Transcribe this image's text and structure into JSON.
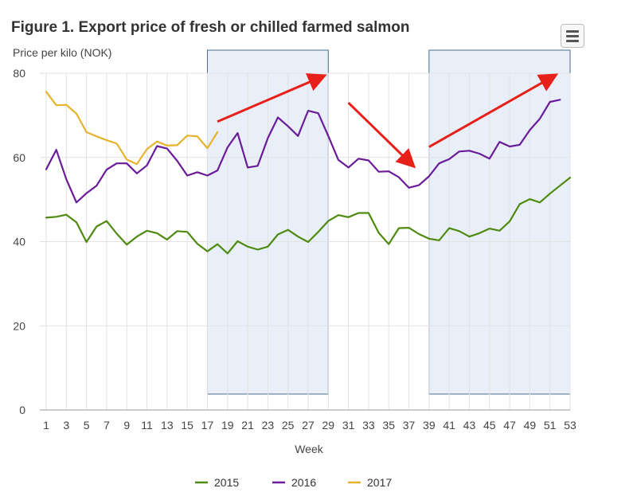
{
  "header": {
    "title": "Figure 1. Export price of fresh or chilled farmed salmon",
    "subtitle": "Price per kilo (NOK)"
  },
  "menu": {
    "icon": "hamburger-menu-icon"
  },
  "colors": {
    "2015": "#4f8a10",
    "2016": "#6a1b9a",
    "2017": "#e6b32e",
    "highlight_fill": "#e8eff9",
    "highlight_border": "#4a6b8a",
    "arrow": "#e8201a",
    "grid": "#e2e2e2"
  },
  "chart_data": {
    "type": "line",
    "title": "Figure 1. Export price of fresh or chilled farmed salmon",
    "ylabel": "Price per kilo (NOK)",
    "xlabel": "Week",
    "ylim": [
      0,
      80
    ],
    "xlim": [
      1,
      53
    ],
    "yticks": [
      0,
      20,
      40,
      60,
      80
    ],
    "xticks": [
      1,
      3,
      5,
      7,
      9,
      11,
      13,
      15,
      17,
      19,
      21,
      23,
      25,
      27,
      29,
      31,
      33,
      35,
      37,
      39,
      41,
      43,
      45,
      47,
      49,
      51,
      53
    ],
    "grid": "vertical and horizontal",
    "legend_position": "bottom-center",
    "series": [
      {
        "name": "2015",
        "x": [
          1,
          2,
          3,
          4,
          5,
          6,
          7,
          8,
          9,
          10,
          11,
          12,
          13,
          14,
          15,
          16,
          17,
          18,
          19,
          20,
          21,
          22,
          23,
          24,
          25,
          26,
          27,
          28,
          29,
          30,
          31,
          32,
          33,
          34,
          35,
          36,
          37,
          38,
          39,
          40,
          41,
          42,
          43,
          44,
          45,
          46,
          47,
          48,
          49,
          50,
          51,
          52,
          53
        ],
        "values": [
          45.7,
          45.9,
          46.4,
          44.6,
          39.9,
          43.6,
          44.9,
          41.9,
          39.3,
          41.2,
          42.6,
          42.0,
          40.5,
          42.5,
          42.3,
          39.5,
          37.7,
          39.4,
          37.2,
          40.1,
          38.8,
          38.1,
          38.8,
          41.7,
          42.8,
          41.2,
          39.9,
          42.3,
          44.9,
          46.3,
          45.8,
          46.8,
          46.8,
          42.1,
          39.4,
          43.2,
          43.3,
          41.8,
          40.7,
          40.3,
          43.2,
          42.5,
          41.2,
          42.0,
          43.1,
          42.6,
          44.8,
          48.9,
          50.1,
          49.3,
          51.4,
          53.3,
          55.2
        ]
      },
      {
        "name": "2016",
        "x": [
          1,
          2,
          3,
          4,
          5,
          6,
          7,
          8,
          9,
          10,
          11,
          12,
          13,
          14,
          15,
          16,
          17,
          18,
          19,
          20,
          21,
          22,
          23,
          24,
          25,
          26,
          27,
          28,
          29,
          30,
          31,
          32,
          33,
          34,
          35,
          36,
          37,
          38,
          39,
          40,
          41,
          42,
          43,
          44,
          45,
          46,
          47,
          48,
          49,
          50,
          51,
          52
        ],
        "values": [
          57.2,
          61.8,
          54.8,
          49.3,
          51.5,
          53.3,
          57.1,
          58.6,
          58.6,
          56.2,
          58.1,
          62.7,
          62.1,
          59.2,
          55.7,
          56.5,
          55.7,
          56.9,
          62.4,
          65.8,
          57.6,
          58.0,
          64.6,
          69.5,
          67.4,
          65.1,
          71.1,
          70.5,
          65.1,
          59.4,
          57.6,
          59.7,
          59.3,
          56.6,
          56.7,
          55.3,
          52.8,
          53.4,
          55.5,
          58.6,
          59.6,
          61.4,
          61.6,
          60.9,
          59.7,
          63.7,
          62.6,
          63.0,
          66.5,
          69.2,
          73.2,
          73.7
        ]
      },
      {
        "name": "2017",
        "x": [
          1,
          2,
          3,
          4,
          5,
          6,
          7,
          8,
          9,
          10,
          11,
          12,
          13,
          14,
          15,
          16,
          17,
          18
        ],
        "values": [
          75.6,
          72.4,
          72.5,
          70.4,
          66.0,
          65.0,
          64.1,
          63.3,
          59.5,
          58.4,
          62.0,
          63.8,
          62.8,
          62.9,
          65.2,
          65.0,
          62.2,
          66.0
        ]
      }
    ],
    "highlight_regions": [
      {
        "from_week": 17,
        "to_week": 29
      },
      {
        "from_week": 39,
        "to_week": 53
      }
    ],
    "arrows": [
      {
        "from": [
          18,
          68.5
        ],
        "to": [
          28,
          78.8
        ]
      },
      {
        "from": [
          31,
          73.0
        ],
        "to": [
          37,
          59.0
        ]
      },
      {
        "from": [
          39,
          62.5
        ],
        "to": [
          51,
          78.8
        ]
      }
    ]
  }
}
